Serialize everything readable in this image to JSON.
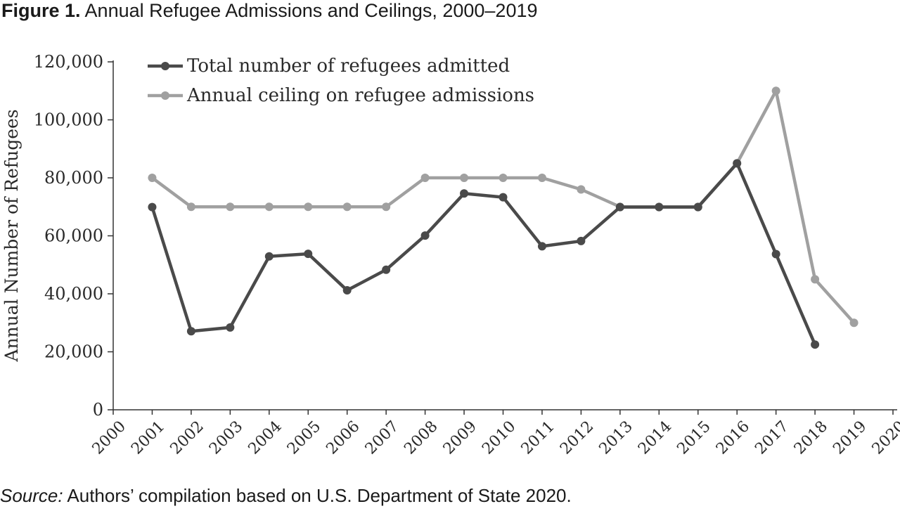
{
  "figure": {
    "label": "Figure 1.",
    "title": "Annual Refugee Admissions and Ceilings, 2000–2019",
    "source_label": "Source:",
    "source_text": "Authors’ compilation based on U.S. Department of State 2020."
  },
  "chart_data": {
    "type": "line",
    "title": "Annual Refugee Admissions and Ceilings, 2000–2019",
    "xlabel": "",
    "ylabel": "Annual Number of Refugees",
    "x_ticks": [
      "2000",
      "2001",
      "2002",
      "2003",
      "2004",
      "2005",
      "2006",
      "2007",
      "2008",
      "2009",
      "2010",
      "2011",
      "2012",
      "2013",
      "2014",
      "2015",
      "2016",
      "2017",
      "2018",
      "2019",
      "2020"
    ],
    "y_ticks": [
      "0",
      "20,000",
      "40,000",
      "60,000",
      "80,000",
      "100,000",
      "120,000"
    ],
    "xlim": [
      2000,
      2020
    ],
    "ylim": [
      0,
      120000
    ],
    "grid": false,
    "legend_position": "top-left",
    "series": [
      {
        "name": "Total number of refugees admitted",
        "color": "#4a4a4a",
        "x": [
          2001,
          2002,
          2003,
          2004,
          2005,
          2006,
          2007,
          2008,
          2009,
          2010,
          2011,
          2012,
          2013,
          2014,
          2015,
          2016,
          2017,
          2018
        ],
        "values": [
          69900,
          27100,
          28400,
          52900,
          53800,
          41200,
          48300,
          60100,
          74600,
          73300,
          56400,
          58200,
          69900,
          69900,
          69900,
          85000,
          53700,
          22500
        ]
      },
      {
        "name": "Annual ceiling on refugee admissions",
        "color": "#a0a0a0",
        "x": [
          2001,
          2002,
          2003,
          2004,
          2005,
          2006,
          2007,
          2008,
          2009,
          2010,
          2011,
          2012,
          2013,
          2014,
          2015,
          2016,
          2017,
          2018,
          2019
        ],
        "values": [
          80000,
          70000,
          70000,
          70000,
          70000,
          70000,
          70000,
          80000,
          80000,
          80000,
          80000,
          76000,
          70000,
          70000,
          70000,
          85000,
          110000,
          45000,
          30000
        ]
      }
    ]
  }
}
